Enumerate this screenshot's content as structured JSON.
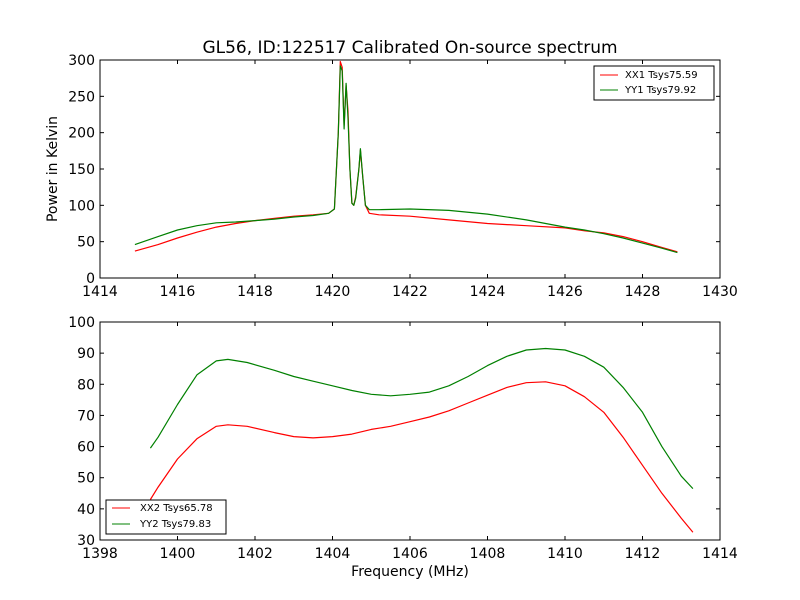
{
  "chart_data": [
    {
      "type": "line",
      "title": "GL56, ID:122517 Calibrated On-source spectrum",
      "xlabel": "",
      "ylabel": "Power in Kelvin",
      "xlim": [
        1414,
        1430
      ],
      "ylim": [
        0,
        300
      ],
      "x_ticks": [
        1414,
        1416,
        1418,
        1420,
        1422,
        1424,
        1426,
        1428,
        1430
      ],
      "y_ticks": [
        0,
        50,
        100,
        150,
        200,
        250,
        300
      ],
      "grid": false,
      "legend_position": "top-right",
      "series": [
        {
          "name": "XX1 Tsys75.59",
          "color": "#ff0000",
          "points": [
            [
              1414.9,
              37
            ],
            [
              1415.5,
              46
            ],
            [
              1416.0,
              55
            ],
            [
              1416.5,
              63
            ],
            [
              1417.0,
              70
            ],
            [
              1417.5,
              75
            ],
            [
              1418.0,
              79
            ],
            [
              1418.5,
              82
            ],
            [
              1419.0,
              85
            ],
            [
              1419.5,
              87
            ],
            [
              1419.9,
              89
            ],
            [
              1420.05,
              95
            ],
            [
              1420.15,
              200
            ],
            [
              1420.2,
              298
            ],
            [
              1420.25,
              290
            ],
            [
              1420.3,
              210
            ],
            [
              1420.35,
              265
            ],
            [
              1420.4,
              230
            ],
            [
              1420.45,
              150
            ],
            [
              1420.5,
              103
            ],
            [
              1420.55,
              100
            ],
            [
              1420.6,
              112
            ],
            [
              1420.68,
              150
            ],
            [
              1420.72,
              176
            ],
            [
              1420.78,
              140
            ],
            [
              1420.85,
              100
            ],
            [
              1420.95,
              89
            ],
            [
              1421.2,
              87
            ],
            [
              1422.0,
              85
            ],
            [
              1423.0,
              80
            ],
            [
              1424.0,
              75
            ],
            [
              1425.0,
              72
            ],
            [
              1426.0,
              69
            ],
            [
              1426.5,
              65
            ],
            [
              1427.0,
              62
            ],
            [
              1427.5,
              57
            ],
            [
              1428.0,
              50
            ],
            [
              1428.5,
              42
            ],
            [
              1428.9,
              36
            ]
          ]
        },
        {
          "name": "YY1 Tsys79.92",
          "color": "#008000",
          "points": [
            [
              1414.9,
              46
            ],
            [
              1415.5,
              57
            ],
            [
              1416.0,
              66
            ],
            [
              1416.5,
              72
            ],
            [
              1417.0,
              76
            ],
            [
              1417.5,
              77
            ],
            [
              1418.0,
              79
            ],
            [
              1418.5,
              81
            ],
            [
              1419.0,
              84
            ],
            [
              1419.5,
              86
            ],
            [
              1419.9,
              89
            ],
            [
              1420.05,
              95
            ],
            [
              1420.15,
              200
            ],
            [
              1420.2,
              292
            ],
            [
              1420.25,
              285
            ],
            [
              1420.3,
              205
            ],
            [
              1420.35,
              268
            ],
            [
              1420.4,
              220
            ],
            [
              1420.45,
              150
            ],
            [
              1420.5,
              103
            ],
            [
              1420.55,
              100
            ],
            [
              1420.6,
              110
            ],
            [
              1420.68,
              150
            ],
            [
              1420.72,
              178
            ],
            [
              1420.78,
              140
            ],
            [
              1420.85,
              100
            ],
            [
              1420.95,
              94
            ],
            [
              1421.2,
              94
            ],
            [
              1422.0,
              95
            ],
            [
              1423.0,
              93
            ],
            [
              1424.0,
              88
            ],
            [
              1425.0,
              80
            ],
            [
              1426.0,
              70
            ],
            [
              1426.5,
              66
            ],
            [
              1427.0,
              61
            ],
            [
              1427.5,
              55
            ],
            [
              1428.0,
              48
            ],
            [
              1428.5,
              41
            ],
            [
              1428.9,
              35
            ]
          ]
        }
      ]
    },
    {
      "type": "line",
      "title": "",
      "xlabel": "Frequency (MHz)",
      "ylabel": "",
      "xlim": [
        1398,
        1414
      ],
      "ylim": [
        30,
        100
      ],
      "x_ticks": [
        1398,
        1400,
        1402,
        1404,
        1406,
        1408,
        1410,
        1412,
        1414
      ],
      "y_ticks": [
        30,
        40,
        50,
        60,
        70,
        80,
        90,
        100
      ],
      "grid": false,
      "legend_position": "bottom-left",
      "series": [
        {
          "name": "XX2 Tsys65.78",
          "color": "#ff0000",
          "points": [
            [
              1399.3,
              43
            ],
            [
              1399.5,
              47
            ],
            [
              1400.0,
              56
            ],
            [
              1400.5,
              62.5
            ],
            [
              1401.0,
              66.5
            ],
            [
              1401.3,
              67
            ],
            [
              1401.8,
              66.5
            ],
            [
              1402.5,
              64.5
            ],
            [
              1403.0,
              63.2
            ],
            [
              1403.5,
              62.8
            ],
            [
              1404.0,
              63.2
            ],
            [
              1404.5,
              64
            ],
            [
              1405.0,
              65.5
            ],
            [
              1405.5,
              66.5
            ],
            [
              1406.0,
              68
            ],
            [
              1406.5,
              69.5
            ],
            [
              1407.0,
              71.5
            ],
            [
              1407.5,
              74
            ],
            [
              1408.0,
              76.5
            ],
            [
              1408.5,
              79
            ],
            [
              1409.0,
              80.5
            ],
            [
              1409.5,
              80.8
            ],
            [
              1410.0,
              79.5
            ],
            [
              1410.5,
              76
            ],
            [
              1411.0,
              71
            ],
            [
              1411.5,
              63
            ],
            [
              1412.0,
              54
            ],
            [
              1412.5,
              45
            ],
            [
              1413.0,
              37
            ],
            [
              1413.3,
              32.5
            ]
          ]
        },
        {
          "name": "YY2 Tsys79.83",
          "color": "#008000",
          "points": [
            [
              1399.3,
              59.5
            ],
            [
              1399.5,
              63
            ],
            [
              1400.0,
              73.5
            ],
            [
              1400.5,
              83
            ],
            [
              1401.0,
              87.5
            ],
            [
              1401.3,
              88
            ],
            [
              1401.8,
              87
            ],
            [
              1402.5,
              84.5
            ],
            [
              1403.0,
              82.5
            ],
            [
              1403.5,
              81
            ],
            [
              1404.0,
              79.5
            ],
            [
              1404.5,
              78
            ],
            [
              1405.0,
              76.8
            ],
            [
              1405.5,
              76.3
            ],
            [
              1406.0,
              76.8
            ],
            [
              1406.5,
              77.5
            ],
            [
              1407.0,
              79.5
            ],
            [
              1407.5,
              82.5
            ],
            [
              1408.0,
              86
            ],
            [
              1408.5,
              89
            ],
            [
              1409.0,
              91
            ],
            [
              1409.5,
              91.5
            ],
            [
              1410.0,
              91
            ],
            [
              1410.5,
              89
            ],
            [
              1411.0,
              85.5
            ],
            [
              1411.5,
              79
            ],
            [
              1412.0,
              71
            ],
            [
              1412.5,
              60
            ],
            [
              1413.0,
              50.5
            ],
            [
              1413.3,
              46.5
            ]
          ]
        }
      ]
    }
  ]
}
